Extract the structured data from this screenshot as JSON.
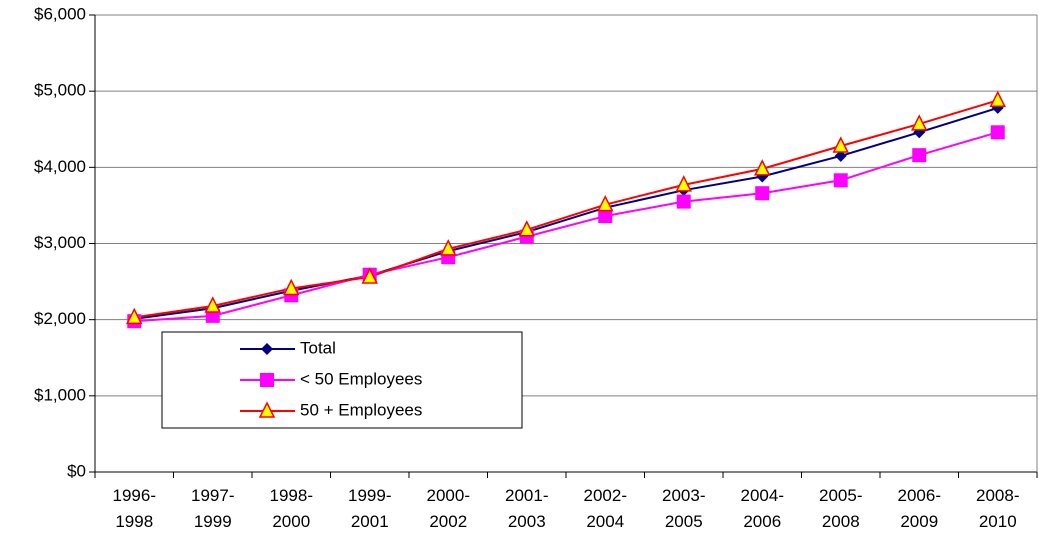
{
  "chart_data": {
    "type": "line",
    "categories": [
      "1996-1998",
      "1997-1999",
      "1998-2000",
      "1999-2001",
      "2000-2002",
      "2001-2003",
      "2002-2004",
      "2003-2005",
      "2004-2006",
      "2005-2008",
      "2006-2009",
      "2008-2010"
    ],
    "series": [
      {
        "name": "Total",
        "color": "#000080",
        "marker": "diamond",
        "values": [
          2010,
          2150,
          2380,
          2580,
          2900,
          3150,
          3470,
          3700,
          3880,
          4150,
          4460,
          4780
        ]
      },
      {
        "name": "< 50 Employees",
        "color": "#ff00ff",
        "marker": "square",
        "values": [
          1980,
          2050,
          2320,
          2590,
          2820,
          3090,
          3360,
          3550,
          3660,
          3830,
          4160,
          4460
        ]
      },
      {
        "name": "50 + Employees",
        "color": "#ff0000",
        "marker": "triangle",
        "marker_fill": "#ffff00",
        "values": [
          2030,
          2180,
          2410,
          2560,
          2930,
          3180,
          3510,
          3770,
          3980,
          4280,
          4570,
          4880
        ]
      }
    ],
    "ylim": [
      0,
      6000
    ],
    "yticks": [
      {
        "value": 0,
        "label": "$0"
      },
      {
        "value": 1000,
        "label": "$1,000"
      },
      {
        "value": 2000,
        "label": "$2,000"
      },
      {
        "value": 3000,
        "label": "$3,000"
      },
      {
        "value": 4000,
        "label": "$4,000"
      },
      {
        "value": 5000,
        "label": "$5,000"
      },
      {
        "value": 6000,
        "label": "$6,000"
      }
    ],
    "grid": true
  }
}
